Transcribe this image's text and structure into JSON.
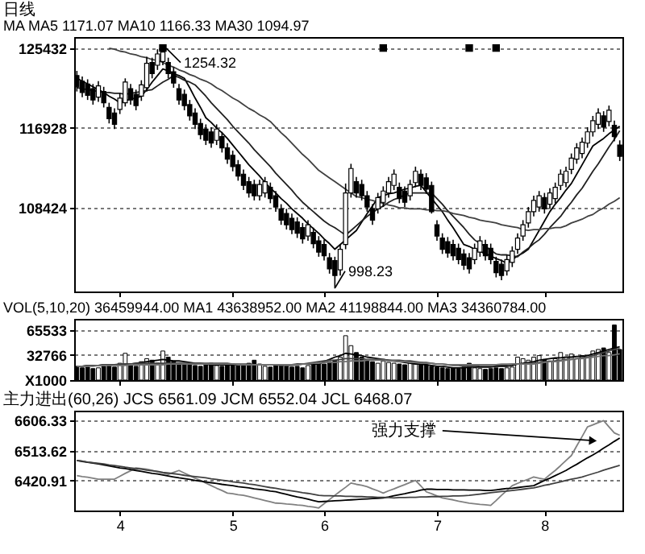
{
  "chart_data": [
    {
      "type": "candlestick",
      "title": "日线",
      "subtitle": "MA MA5 1171.07 MA10 1166.33 MA30 1094.97",
      "categories": [
        null,
        null,
        null,
        null,
        null,
        null,
        null,
        null,
        "4",
        null,
        null,
        null,
        null,
        null,
        null,
        null,
        null,
        null,
        null,
        null,
        null,
        null,
        null,
        null,
        null,
        null,
        null,
        null,
        null,
        "5",
        null,
        null,
        null,
        null,
        null,
        null,
        null,
        null,
        null,
        null,
        null,
        null,
        null,
        null,
        null,
        null,
        "6",
        null,
        null,
        null,
        null,
        null,
        null,
        null,
        null,
        null,
        null,
        null,
        null,
        null,
        null,
        null,
        null,
        null,
        null,
        null,
        null,
        "7",
        null,
        null,
        null,
        null,
        null,
        null,
        null,
        null,
        null,
        null,
        null,
        null,
        null,
        null,
        null,
        null,
        null,
        null,
        null,
        "8",
        null,
        null,
        null,
        null,
        null,
        null,
        null,
        null,
        null,
        null,
        null,
        null,
        null,
        null
      ],
      "ohlc": [
        [
          122500,
          123000,
          120800,
          121300
        ],
        [
          121900,
          122400,
          120200,
          120700
        ],
        [
          121600,
          122100,
          119900,
          120400
        ],
        [
          121100,
          121600,
          119400,
          119900
        ],
        [
          120200,
          121900,
          119700,
          121400
        ],
        [
          120800,
          121300,
          119100,
          119600
        ],
        [
          119100,
          119600,
          117400,
          117900
        ],
        [
          118500,
          119000,
          116800,
          117300
        ],
        [
          118900,
          120600,
          118400,
          120100
        ],
        [
          119600,
          122200,
          119200,
          121800
        ],
        [
          121100,
          121600,
          119400,
          119900
        ],
        [
          120500,
          121000,
          118800,
          119300
        ],
        [
          120300,
          122000,
          119800,
          121500
        ],
        [
          121200,
          124500,
          120800,
          123800
        ],
        [
          123900,
          124400,
          122200,
          122700
        ],
        [
          123600,
          125300,
          123100,
          124800
        ],
        [
          124000,
          125432,
          123600,
          125000
        ],
        [
          123900,
          124400,
          122200,
          122700
        ],
        [
          122900,
          123400,
          121200,
          121700
        ],
        [
          121100,
          121600,
          119400,
          119900
        ],
        [
          120500,
          121000,
          118800,
          119300
        ],
        [
          119400,
          119900,
          117700,
          118200
        ],
        [
          118500,
          119000,
          116800,
          117300
        ],
        [
          117400,
          117900,
          115700,
          116200
        ],
        [
          116800,
          117300,
          115100,
          115600
        ],
        [
          116500,
          117000,
          114800,
          115300
        ],
        [
          115600,
          117300,
          115100,
          116800
        ],
        [
          116000,
          116500,
          114300,
          114800
        ],
        [
          114800,
          115300,
          113100,
          113600
        ],
        [
          114000,
          114500,
          112300,
          112800
        ],
        [
          113000,
          113500,
          111300,
          111800
        ],
        [
          112000,
          112500,
          110300,
          110800
        ],
        [
          111200,
          111700,
          109500,
          110000
        ],
        [
          110900,
          111400,
          109200,
          109700
        ],
        [
          109700,
          111400,
          109200,
          110900
        ],
        [
          110000,
          111700,
          109500,
          111200
        ],
        [
          110600,
          111100,
          108900,
          109400
        ],
        [
          109700,
          110200,
          108000,
          108500
        ],
        [
          108300,
          108800,
          106600,
          107100
        ],
        [
          107800,
          108300,
          106100,
          106600
        ],
        [
          107300,
          107800,
          105600,
          106100
        ],
        [
          106900,
          107400,
          105200,
          105700
        ],
        [
          106300,
          106800,
          104600,
          105100
        ],
        [
          105400,
          107100,
          104900,
          106600
        ],
        [
          105800,
          106300,
          104100,
          104600
        ],
        [
          104900,
          105400,
          103200,
          103700
        ],
        [
          104500,
          105000,
          102800,
          103300
        ],
        [
          103100,
          103600,
          101400,
          101900
        ],
        [
          102800,
          103200,
          99823,
          101200
        ],
        [
          101800,
          104500,
          101200,
          104000
        ],
        [
          104500,
          111000,
          104000,
          110000
        ],
        [
          110000,
          113100,
          109500,
          112600
        ],
        [
          111200,
          111700,
          109500,
          110000
        ],
        [
          110900,
          111400,
          109200,
          109700
        ],
        [
          109700,
          110200,
          108000,
          108500
        ],
        [
          108300,
          108800,
          106600,
          107100
        ],
        [
          108300,
          110000,
          107800,
          109500
        ],
        [
          109000,
          110700,
          108500,
          110200
        ],
        [
          110000,
          111700,
          109500,
          111200
        ],
        [
          110800,
          112500,
          110300,
          112000
        ],
        [
          110600,
          111100,
          108900,
          109400
        ],
        [
          110200,
          110700,
          108500,
          109000
        ],
        [
          109700,
          111400,
          109200,
          110900
        ],
        [
          111100,
          112800,
          110600,
          112300
        ],
        [
          112000,
          112500,
          110300,
          110800
        ],
        [
          111600,
          112100,
          109900,
          110400
        ],
        [
          110800,
          111200,
          107800,
          108000
        ],
        [
          106600,
          107100,
          104900,
          105400
        ],
        [
          105200,
          105700,
          103500,
          104000
        ],
        [
          104800,
          105300,
          103100,
          103600
        ],
        [
          104500,
          105000,
          102800,
          103300
        ],
        [
          104100,
          104600,
          102400,
          102900
        ],
        [
          103500,
          104000,
          101800,
          102300
        ],
        [
          103100,
          103600,
          101400,
          101900
        ],
        [
          102900,
          104600,
          102400,
          104100
        ],
        [
          103700,
          105400,
          103200,
          104900
        ],
        [
          104500,
          105000,
          102800,
          103300
        ],
        [
          104100,
          104600,
          102400,
          102900
        ],
        [
          102700,
          103200,
          101000,
          101500
        ],
        [
          102400,
          102900,
          100700,
          101200
        ],
        [
          101700,
          103400,
          101200,
          102900
        ],
        [
          102600,
          104300,
          102100,
          103800
        ],
        [
          104000,
          105700,
          103500,
          105200
        ],
        [
          105400,
          107100,
          104900,
          106600
        ],
        [
          106800,
          108500,
          106300,
          108000
        ],
        [
          108000,
          109700,
          107500,
          109200
        ],
        [
          108500,
          110200,
          108000,
          109700
        ],
        [
          109500,
          110000,
          107800,
          108300
        ],
        [
          108800,
          110500,
          108300,
          110000
        ],
        [
          109400,
          111100,
          108900,
          110600
        ],
        [
          110800,
          112500,
          110300,
          112000
        ],
        [
          111100,
          112800,
          110600,
          112300
        ],
        [
          112500,
          114200,
          112000,
          113700
        ],
        [
          113600,
          115300,
          113100,
          114800
        ],
        [
          114200,
          115900,
          113700,
          115400
        ],
        [
          115300,
          117000,
          114800,
          116500
        ],
        [
          116500,
          118200,
          116000,
          117700
        ],
        [
          117300,
          119000,
          116800,
          118500
        ],
        [
          118200,
          118700,
          116500,
          117000
        ],
        [
          117600,
          119300,
          117100,
          118800
        ],
        [
          117200,
          117700,
          115500,
          116000
        ],
        [
          115100,
          115600,
          113400,
          113900
        ]
      ],
      "series": [
        {
          "type": "line",
          "color": "#000000",
          "values": [
            122200,
            121900,
            121600,
            121300,
            121000,
            120700,
            120300,
            120000,
            119600,
            119800,
            120000,
            120100,
            120300,
            121000,
            121800,
            122500,
            123200,
            123000,
            122700,
            122500,
            122200,
            121200,
            120100,
            119100,
            118000,
            117500,
            116900,
            116400,
            115800,
            115100,
            114400,
            113700,
            113000,
            112400,
            111800,
            111100,
            110500,
            110000,
            109400,
            108900,
            108300,
            107800,
            107300,
            106700,
            106200,
            105700,
            105100,
            104600,
            104000,
            104500,
            105000,
            105500,
            106000,
            106900,
            107800,
            108600,
            109500,
            109700,
            109900,
            110000,
            110200,
            110400,
            110500,
            110700,
            110800,
            110100,
            109400,
            108700,
            108000,
            107100,
            106300,
            105400,
            104500,
            104300,
            104000,
            103800,
            103500,
            103300,
            103000,
            102800,
            102500,
            102900,
            103300,
            103600,
            104000,
            105000,
            106000,
            107000,
            108000,
            108800,
            109500,
            110300,
            111000,
            112000,
            113000,
            114000,
            115000,
            115400,
            115800,
            116300,
            116700,
            117107
          ]
        },
        {
          "type": "line",
          "color": "#202020",
          "values": [
            121200,
            121100,
            121000,
            120900,
            120800,
            120700,
            120700,
            120600,
            120600,
            120500,
            120600,
            120700,
            120800,
            120900,
            121000,
            121400,
            121800,
            122100,
            122500,
            122300,
            122000,
            121800,
            121500,
            120900,
            120300,
            119600,
            119000,
            118400,
            117800,
            117100,
            116500,
            115900,
            115300,
            114600,
            114000,
            113400,
            112800,
            112100,
            111500,
            110900,
            110300,
            109600,
            109000,
            108500,
            108000,
            107500,
            107000,
            106600,
            106300,
            105900,
            105500,
            106000,
            106500,
            107000,
            107500,
            107900,
            108300,
            108600,
            109000,
            109300,
            109500,
            109800,
            110000,
            110000,
            110000,
            110000,
            110000,
            109400,
            108800,
            108100,
            107500,
            106900,
            106300,
            105600,
            105000,
            104600,
            104300,
            103900,
            103500,
            103400,
            103400,
            103300,
            103200,
            103700,
            104100,
            104600,
            105000,
            105600,
            106300,
            106900,
            107500,
            108300,
            109000,
            109800,
            110500,
            111400,
            112300,
            113100,
            114000,
            114900,
            115700,
            116633
          ]
        },
        {
          "type": "line",
          "color": "#404040",
          "values": [
            null,
            null,
            null,
            null,
            null,
            null,
            125400,
            125300,
            125100,
            125000,
            124800,
            124700,
            124500,
            124400,
            124200,
            124100,
            123900,
            123600,
            123400,
            123100,
            122900,
            122600,
            122400,
            122100,
            121900,
            121600,
            121200,
            120900,
            120500,
            120100,
            119800,
            119400,
            119000,
            118700,
            118300,
            118000,
            117600,
            117000,
            116400,
            115900,
            115300,
            114700,
            114100,
            113600,
            113000,
            112400,
            112000,
            111600,
            111200,
            110800,
            110400,
            110000,
            109600,
            109500,
            109300,
            109200,
            109000,
            108900,
            108700,
            108600,
            108400,
            108400,
            108300,
            108300,
            108300,
            108200,
            108200,
            108100,
            108100,
            108000,
            107800,
            107700,
            107600,
            107400,
            107300,
            107100,
            107000,
            106900,
            106800,
            106600,
            106500,
            106400,
            106300,
            106100,
            106000,
            106100,
            106100,
            106200,
            106200,
            106300,
            106300,
            106500,
            106800,
            107000,
            107200,
            107500,
            107700,
            108100,
            108400,
            108800,
            109100,
            109497
          ]
        },
        {
          "type": "scatter",
          "marker": "square",
          "color": "#000000",
          "values": [
            null,
            null,
            null,
            null,
            null,
            null,
            null,
            null,
            null,
            null,
            null,
            null,
            null,
            null,
            null,
            null,
            125432,
            null,
            null,
            null,
            null,
            null,
            null,
            null,
            null,
            null,
            null,
            null,
            null,
            null,
            null,
            null,
            null,
            null,
            null,
            null,
            null,
            null,
            null,
            null,
            null,
            null,
            null,
            null,
            null,
            null,
            null,
            null,
            null,
            null,
            null,
            null,
            null,
            null,
            null,
            null,
            null,
            125432,
            null,
            null,
            null,
            null,
            null,
            null,
            null,
            null,
            null,
            null,
            null,
            null,
            null,
            null,
            null,
            125432,
            null,
            null,
            null,
            null,
            125432,
            null,
            null,
            null,
            null,
            null,
            null,
            null,
            null,
            null,
            null,
            null,
            null,
            null,
            null,
            null,
            null,
            null,
            null,
            null,
            null,
            null,
            null,
            null
          ]
        }
      ],
      "ylim": [
        99500,
        126600
      ],
      "yticks": [
        125432,
        116928,
        108424
      ],
      "grid": "y",
      "tick_labels": "y",
      "annotations": [
        "1254.32",
        "998.23"
      ]
    },
    {
      "type": "bar",
      "title": "VOL(5,10,20) 36459944.00 MA1 43638952.00 MA2 41198844.00 MA3 34360784.00",
      "categories": [
        null,
        null,
        null,
        null,
        null,
        null,
        null,
        null,
        "4",
        null,
        null,
        null,
        null,
        null,
        null,
        null,
        null,
        null,
        null,
        null,
        null,
        null,
        null,
        null,
        null,
        null,
        null,
        null,
        null,
        "5",
        null,
        null,
        null,
        null,
        null,
        null,
        null,
        null,
        null,
        null,
        null,
        null,
        null,
        null,
        null,
        null,
        "6",
        null,
        null,
        null,
        null,
        null,
        null,
        null,
        null,
        null,
        null,
        null,
        null,
        null,
        null,
        null,
        null,
        null,
        null,
        null,
        null,
        "7",
        null,
        null,
        null,
        null,
        null,
        null,
        null,
        null,
        null,
        null,
        null,
        null,
        null,
        null,
        null,
        null,
        null,
        null,
        null,
        "8",
        null,
        null,
        null,
        null,
        null,
        null,
        null,
        null,
        null,
        null,
        null,
        null,
        null,
        null
      ],
      "series": [
        {
          "type": "bar",
          "values": [
            18000,
            16000,
            17000,
            15000,
            16000,
            18000,
            20000,
            17000,
            22000,
            35000,
            20000,
            18000,
            24000,
            28000,
            26000,
            22000,
            38000,
            30000,
            25000,
            22000,
            20000,
            21000,
            19000,
            18000,
            20000,
            22000,
            19000,
            18000,
            20000,
            21000,
            19000,
            20000,
            22000,
            26000,
            21000,
            18000,
            17000,
            19000,
            20000,
            18000,
            17000,
            18000,
            16000,
            19000,
            20000,
            22000,
            21000,
            24000,
            26000,
            30000,
            58000,
            45000,
            36000,
            30000,
            26000,
            24000,
            22000,
            25000,
            23000,
            22000,
            21000,
            20000,
            24000,
            22000,
            23000,
            20000,
            18000,
            17000,
            16000,
            15000,
            16000,
            15000,
            17000,
            22000,
            16000,
            15000,
            14000,
            15000,
            16000,
            15000,
            16000,
            17000,
            30000,
            28000,
            26000,
            30000,
            32000,
            27000,
            25000,
            28000,
            36000,
            30000,
            34000,
            28000,
            32000,
            30000,
            38000,
            40000,
            42000,
            36000,
            72000,
            40000
          ],
          "colors": [
            "#000000",
            "#000000",
            "#000000",
            "#000000",
            "#ffffff",
            "#000000",
            "#000000",
            "#000000",
            "#ffffff",
            "#ffffff",
            "#000000",
            "#000000",
            "#ffffff",
            "#ffffff",
            "#000000",
            "#ffffff",
            "#ffffff",
            "#000000",
            "#000000",
            "#000000",
            "#000000",
            "#000000",
            "#000000",
            "#000000",
            "#000000",
            "#000000",
            "#ffffff",
            "#000000",
            "#000000",
            "#000000",
            "#000000",
            "#000000",
            "#000000",
            "#000000",
            "#ffffff",
            "#ffffff",
            "#000000",
            "#000000",
            "#000000",
            "#000000",
            "#000000",
            "#000000",
            "#000000",
            "#ffffff",
            "#000000",
            "#000000",
            "#000000",
            "#000000",
            "#000000",
            "#ffffff",
            "#ffffff",
            "#ffffff",
            "#000000",
            "#000000",
            "#000000",
            "#000000",
            "#ffffff",
            "#ffffff",
            "#ffffff",
            "#ffffff",
            "#000000",
            "#000000",
            "#ffffff",
            "#ffffff",
            "#000000",
            "#000000",
            "#000000",
            "#000000",
            "#000000",
            "#000000",
            "#000000",
            "#000000",
            "#000000",
            "#000000",
            "#ffffff",
            "#ffffff",
            "#000000",
            "#000000",
            "#000000",
            "#000000",
            "#ffffff",
            "#ffffff",
            "#ffffff",
            "#ffffff",
            "#ffffff",
            "#ffffff",
            "#ffffff",
            "#000000",
            "#ffffff",
            "#ffffff",
            "#ffffff",
            "#ffffff",
            "#ffffff",
            "#ffffff",
            "#ffffff",
            "#ffffff",
            "#ffffff",
            "#ffffff",
            "#000000",
            "#ffffff",
            "#000000",
            "#000000"
          ]
        },
        {
          "type": "line",
          "color": "#000000",
          "values": [
            18000,
            18000,
            19000,
            19000,
            19000,
            20000,
            20000,
            20000,
            20000,
            21000,
            21000,
            22000,
            23000,
            24000,
            25000,
            26000,
            27000,
            26000,
            25000,
            25000,
            24000,
            23000,
            22000,
            22000,
            21000,
            20000,
            20000,
            20000,
            20000,
            20000,
            20000,
            20000,
            20000,
            20000,
            20000,
            20000,
            20000,
            20000,
            20000,
            20000,
            20000,
            21000,
            21000,
            21000,
            21000,
            21000,
            24000,
            27000,
            30000,
            32000,
            35000,
            34000,
            33000,
            32000,
            30000,
            29000,
            28000,
            27000,
            26000,
            25000,
            24000,
            23000,
            22000,
            21000,
            21000,
            20000,
            19000,
            18000,
            18000,
            17000,
            16000,
            16000,
            16000,
            17000,
            17000,
            17000,
            17000,
            17000,
            18000,
            18000,
            18000,
            19000,
            21000,
            22000,
            23000,
            24000,
            26000,
            27000,
            28000,
            29000,
            29000,
            30000,
            30000,
            31000,
            31000,
            32000,
            34000,
            36000,
            38000,
            40000,
            42000,
            43639
          ]
        },
        {
          "type": "line",
          "color": "#404040",
          "values": [
            18000,
            18000,
            19000,
            19000,
            19000,
            20000,
            20000,
            20000,
            21000,
            21000,
            21000,
            22000,
            22000,
            22000,
            22000,
            22000,
            22000,
            22000,
            22000,
            22000,
            22000,
            22000,
            22000,
            22000,
            22000,
            22000,
            22000,
            22000,
            22000,
            21000,
            21000,
            21000,
            21000,
            20000,
            20000,
            20000,
            20000,
            20000,
            19000,
            19000,
            19000,
            20000,
            21000,
            22000,
            23000,
            24000,
            25000,
            26000,
            26000,
            27000,
            28000,
            28000,
            28000,
            28000,
            27000,
            27000,
            27000,
            27000,
            26000,
            26000,
            26000,
            25000,
            25000,
            24000,
            23000,
            23000,
            22000,
            21000,
            21000,
            20000,
            19000,
            19000,
            18000,
            18000,
            18000,
            19000,
            19000,
            19000,
            20000,
            20000,
            20000,
            21000,
            21000,
            21000,
            22000,
            22000,
            23000,
            24000,
            24000,
            25000,
            26000,
            27000,
            27000,
            28000,
            29000,
            30000,
            32000,
            34000,
            36000,
            38000,
            40000,
            41199
          ]
        },
        {
          "type": "line",
          "color": "#707070",
          "values": [
            18000,
            18000,
            18000,
            18000,
            19000,
            19000,
            19000,
            19000,
            19000,
            19000,
            20000,
            20000,
            20000,
            20000,
            20000,
            20000,
            20000,
            21000,
            21000,
            21000,
            21000,
            21000,
            21000,
            21000,
            21000,
            21000,
            21000,
            21000,
            21000,
            21000,
            20000,
            20000,
            20000,
            20000,
            20000,
            20000,
            20000,
            20000,
            20000,
            20000,
            20000,
            20000,
            21000,
            21000,
            22000,
            22000,
            23000,
            23000,
            23000,
            24000,
            24000,
            25000,
            25000,
            25000,
            26000,
            26000,
            26000,
            26000,
            25000,
            25000,
            24000,
            24000,
            23000,
            23000,
            22000,
            22000,
            22000,
            21000,
            21000,
            20000,
            20000,
            20000,
            20000,
            20000,
            20000,
            20000,
            20000,
            20000,
            20000,
            21000,
            21000,
            21000,
            21000,
            21000,
            21000,
            21000,
            22000,
            23000,
            24000,
            24000,
            25000,
            26000,
            27000,
            28000,
            28000,
            29000,
            30000,
            31000,
            32000,
            32000,
            33000,
            34361
          ]
        }
      ],
      "ylim": [
        0,
        80000
      ],
      "yticks": [
        65533,
        32766,
        {
          "value": 0,
          "label": "X1000"
        }
      ],
      "grid": "y",
      "tick_labels": "y"
    },
    {
      "type": "line",
      "title": "主力进出(60,26) JCS 6561.09 JCM 6552.04 JCL 6468.07",
      "categories": [
        null,
        null,
        null,
        null,
        null,
        null,
        null,
        null,
        "4",
        null,
        null,
        null,
        null,
        null,
        null,
        null,
        null,
        null,
        null,
        null,
        null,
        null,
        null,
        null,
        null,
        null,
        null,
        null,
        null,
        "5",
        null,
        null,
        null,
        null,
        null,
        null,
        null,
        null,
        null,
        null,
        null,
        null,
        null,
        null,
        null,
        null,
        "6",
        null,
        null,
        null,
        null,
        null,
        null,
        null,
        null,
        null,
        null,
        null,
        null,
        null,
        null,
        null,
        null,
        null,
        null,
        null,
        null,
        "7",
        null,
        null,
        null,
        null,
        null,
        null,
        null,
        null,
        null,
        null,
        null,
        null,
        null,
        null,
        null,
        null,
        null,
        null,
        null,
        "8",
        null,
        null,
        null,
        null,
        null,
        null,
        null,
        null,
        null,
        null,
        null,
        null,
        null,
        null
      ],
      "series": [
        {
          "type": "line",
          "color": "#808080",
          "values": [
            6436,
            6433,
            6431,
            6428,
            6425,
            6425,
            6425,
            6425,
            6434,
            6443,
            6451,
            6460,
            6458,
            6456,
            6452,
            6448,
            6444,
            6440,
            6446,
            6452,
            6444,
            6436,
            6428,
            6421,
            6413,
            6405,
            6397,
            6390,
            6382,
            6380,
            6377,
            6375,
            6371,
            6367,
            6363,
            6359,
            6355,
            6351,
            6350,
            6348,
            6347,
            6345,
            6344,
            6341,
            6339,
            6336,
            6349,
            6362,
            6375,
            6388,
            6400,
            6413,
            6409,
            6406,
            6402,
            6395,
            6389,
            6382,
            6389,
            6395,
            6402,
            6408,
            6415,
            6421,
            6404,
            6386,
            6380,
            6373,
            6367,
            6364,
            6361,
            6357,
            6354,
            6351,
            6349,
            6347,
            6346,
            6344,
            6359,
            6375,
            6390,
            6405,
            6412,
            6419,
            6425,
            6432,
            6428,
            6425,
            6439,
            6452,
            6467,
            6483,
            6498,
            6528,
            6557,
            6587,
            6593,
            6600,
            6606,
            6587,
            6568,
            6561.09
          ]
        },
        {
          "type": "line",
          "color": "#000000",
          "values": [
            6483,
            6480,
            6477,
            6475,
            6472,
            6469,
            6466,
            6463,
            6460,
            6458,
            6455,
            6452,
            6449,
            6446,
            6443,
            6441,
            6438,
            6435,
            6432,
            6429,
            6427,
            6424,
            6421,
            6419,
            6416,
            6414,
            6412,
            6409,
            6407,
            6405,
            6402,
            6400,
            6398,
            6395,
            6393,
            6391,
            6388,
            6386,
            6382,
            6378,
            6374,
            6370,
            6367,
            6363,
            6359,
            6355,
            6356,
            6357,
            6358,
            6359,
            6360,
            6361,
            6362,
            6363,
            6364,
            6365,
            6366,
            6367,
            6370,
            6374,
            6377,
            6380,
            6384,
            6387,
            6391,
            6394,
            6394,
            6393,
            6393,
            6393,
            6392,
            6392,
            6392,
            6391,
            6391,
            6391,
            6390,
            6390,
            6392,
            6394,
            6396,
            6397,
            6399,
            6401,
            6403,
            6405,
            6413,
            6421,
            6428,
            6436,
            6444,
            6452,
            6462,
            6471,
            6481,
            6491,
            6500,
            6510,
            6521,
            6531,
            6542,
            6552.04
          ]
        },
        {
          "type": "line",
          "color": "#404040",
          "values": [
            6483,
            6481,
            6478,
            6476,
            6474,
            6472,
            6469,
            6467,
            6465,
            6462,
            6460,
            6458,
            6456,
            6453,
            6451,
            6449,
            6446,
            6444,
            6442,
            6440,
            6437,
            6435,
            6433,
            6431,
            6429,
            6426,
            6424,
            6422,
            6420,
            6417,
            6415,
            6413,
            6410,
            6408,
            6405,
            6402,
            6399,
            6397,
            6394,
            6391,
            6389,
            6386,
            6383,
            6381,
            6378,
            6375,
            6374,
            6374,
            6373,
            6373,
            6372,
            6372,
            6371,
            6371,
            6370,
            6370,
            6369,
            6369,
            6368,
            6367,
            6368,
            6368,
            6369,
            6369,
            6370,
            6370,
            6371,
            6371,
            6372,
            6372,
            6373,
            6373,
            6374,
            6375,
            6377,
            6379,
            6381,
            6383,
            6385,
            6387,
            6388,
            6390,
            6392,
            6394,
            6396,
            6398,
            6402,
            6406,
            6409,
            6413,
            6417,
            6421,
            6425,
            6428,
            6432,
            6437,
            6442,
            6447,
            6453,
            6458,
            6463,
            6468.07
          ]
        }
      ],
      "ylim": [
        6328,
        6637
      ],
      "yticks": [
        6606.33,
        6513.62,
        6420.91
      ],
      "grid": "y",
      "annotations": [
        "强力支撑"
      ]
    }
  ]
}
